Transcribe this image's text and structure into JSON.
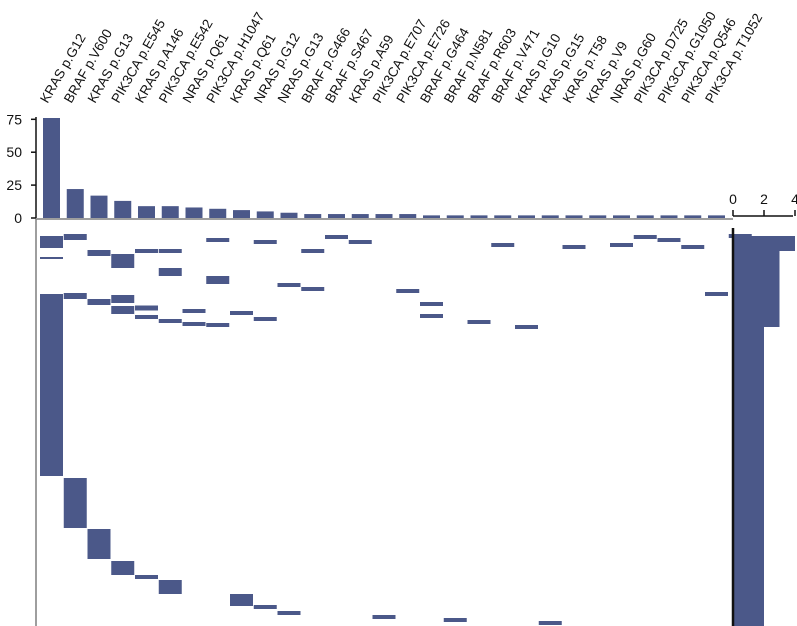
{
  "chart_data": {
    "type": "upset",
    "mutations": [
      "KRAS p.G12",
      "BRAF p.V600",
      "KRAS p.G13",
      "PIK3CA p.E545",
      "KRAS p.A146",
      "PIK3CA p.E542",
      "NRAS p.Q61",
      "PIK3CA p.H1047",
      "KRAS p.Q61",
      "NRAS p.G12",
      "NRAS p.G13",
      "BRAF p.G466",
      "BRAF p.S467",
      "KRAS p.A59",
      "PIK3CA p.E707",
      "PIK3CA p.E726",
      "BRAF p.G464",
      "BRAF p.N581",
      "BRAF p.R603",
      "BRAF p.V471",
      "KRAS p.G10",
      "KRAS p.G15",
      "KRAS p.T58",
      "KRAS p.V9",
      "NRAS p.G60",
      "PIK3CA p.D725",
      "PIK3CA p.G1050",
      "PIK3CA p.Q546",
      "PIK3CA p.T1052"
    ],
    "counts": [
      76,
      22,
      17,
      13,
      9,
      9,
      8,
      7,
      6,
      5,
      4,
      3,
      3,
      3,
      3,
      3,
      2,
      2,
      2,
      2,
      2,
      2,
      2,
      2,
      2,
      2,
      2,
      2,
      2
    ],
    "top_axis": {
      "ticks": [
        0,
        25,
        50,
        75
      ]
    },
    "side_axis": {
      "ticks": [
        0,
        2,
        4
      ],
      "range": [
        0,
        4
      ]
    },
    "side_bar_values": [
      4,
      3,
      2,
      1
    ],
    "grid": false,
    "colors": {
      "bar": "#4b5889",
      "axis": "#7f7f7f",
      "separator": "#111111"
    }
  }
}
